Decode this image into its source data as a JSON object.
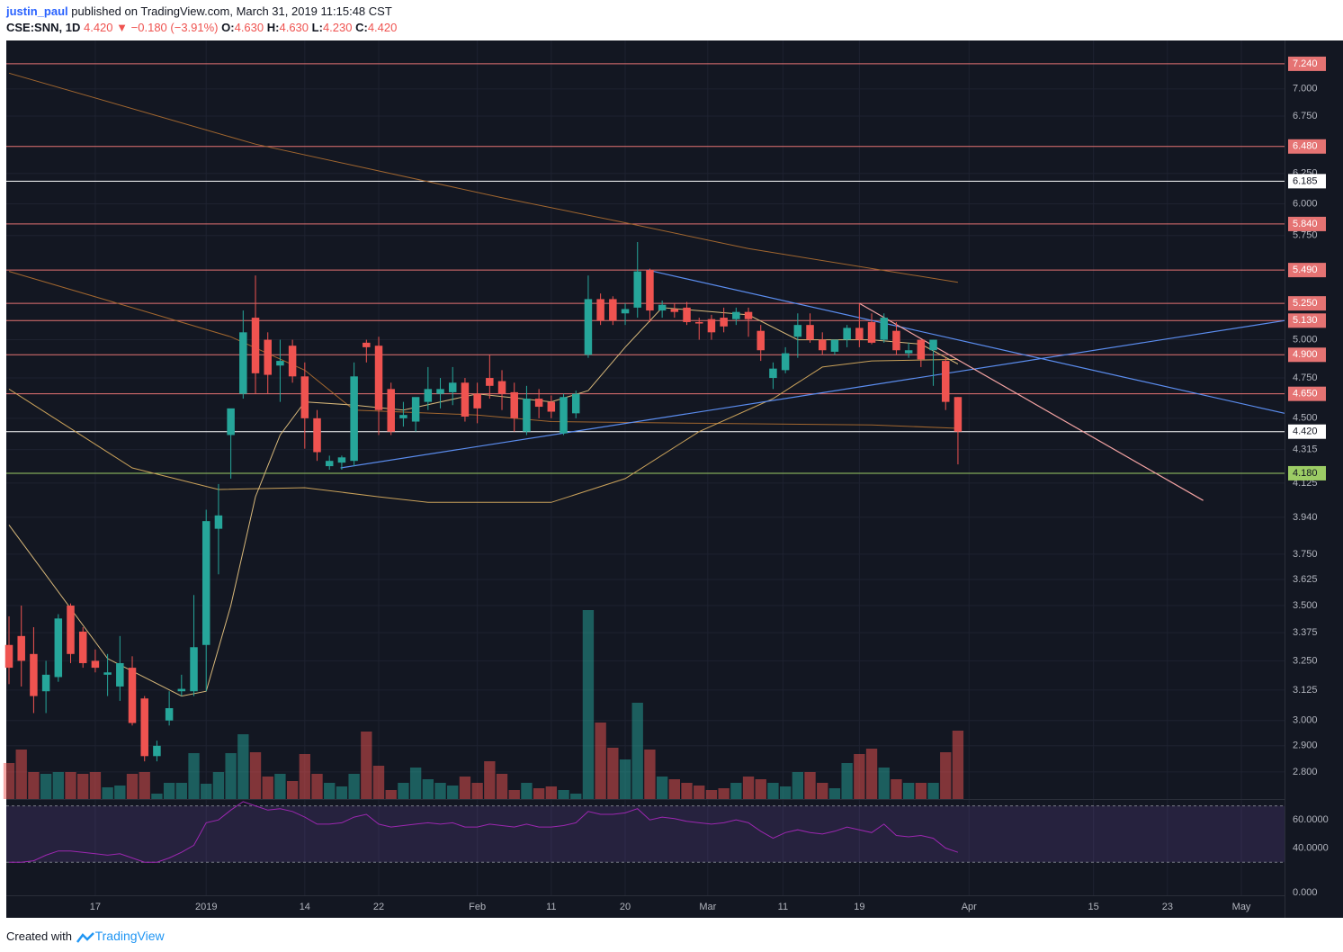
{
  "chart_data": {
    "type": "candlestick",
    "header": {
      "author": "justin_paul",
      "published": "published on TradingView.com, March 31, 2019 11:15:48 CST"
    },
    "quote": {
      "symbol": "CSE:SNN, 1D",
      "last": "4.420",
      "arrow": "▼",
      "change": "−0.180 (−3.91%)",
      "fields": [
        {
          "label": "O:",
          "value": "4.630"
        },
        {
          "label": "H:",
          "value": "4.630"
        },
        {
          "label": "L:",
          "value": "4.230"
        },
        {
          "label": "C:",
          "value": "4.420"
        }
      ]
    },
    "footer": {
      "text": "Created with",
      "brand": "TradingView"
    },
    "log_scale": true,
    "grid": true,
    "up_color": "#26a69a",
    "down_color": "#ef5350",
    "xlim": [
      -0.22,
      103.5
    ],
    "xticks": [
      {
        "value": 7,
        "label": "17"
      },
      {
        "value": 16,
        "label": "2019"
      },
      {
        "value": 24,
        "label": "14"
      },
      {
        "value": 30,
        "label": "22"
      },
      {
        "value": 38,
        "label": "Feb"
      },
      {
        "value": 44,
        "label": "11"
      },
      {
        "value": 50,
        "label": "20"
      },
      {
        "value": 56.7,
        "label": "Mar"
      },
      {
        "value": 62.8,
        "label": "11"
      },
      {
        "value": 69,
        "label": "19"
      },
      {
        "value": 77.9,
        "label": "Apr"
      },
      {
        "value": 88,
        "label": "15"
      },
      {
        "value": 94,
        "label": "23"
      },
      {
        "value": 100,
        "label": "May"
      }
    ],
    "ylim": [
      2.7,
      7.47
    ],
    "yticks": [
      {
        "value": 7,
        "label": "7.000"
      },
      {
        "value": 6.75,
        "label": "6.750"
      },
      {
        "value": 6.25,
        "label": "6.250"
      },
      {
        "value": 6,
        "label": "6.000"
      },
      {
        "value": 5.75,
        "label": "5.750"
      },
      {
        "value": 5,
        "label": "5.000"
      },
      {
        "value": 4.75,
        "label": "4.750"
      },
      {
        "value": 4.5,
        "label": "4.500"
      },
      {
        "value": 4.315,
        "label": "4.315"
      },
      {
        "value": 4.125,
        "label": "4.125"
      },
      {
        "value": 3.94,
        "label": "3.940"
      },
      {
        "value": 3.75,
        "label": "3.750"
      },
      {
        "value": 3.625,
        "label": "3.625"
      },
      {
        "value": 3.5,
        "label": "3.500"
      },
      {
        "value": 3.375,
        "label": "3.375"
      },
      {
        "value": 3.25,
        "label": "3.250"
      },
      {
        "value": 3.125,
        "label": "3.125"
      },
      {
        "value": 3,
        "label": "3.000"
      },
      {
        "value": 2.9,
        "label": "2.900"
      },
      {
        "value": 2.8,
        "label": "2.800"
      }
    ],
    "price_lines": [
      {
        "value": 7.24,
        "label": "7.240",
        "color": "#e57373",
        "text_color": "#ffffff"
      },
      {
        "value": 6.48,
        "label": "6.480",
        "color": "#e57373",
        "text_color": "#ffffff"
      },
      {
        "value": 6.185,
        "label": "6.185",
        "color": "#ffffff",
        "text_color": "#131722"
      },
      {
        "value": 5.84,
        "label": "5.840",
        "color": "#e57373",
        "text_color": "#ffffff"
      },
      {
        "value": 5.49,
        "label": "5.490",
        "color": "#e57373",
        "text_color": "#ffffff"
      },
      {
        "value": 5.25,
        "label": "5.250",
        "color": "#e57373",
        "text_color": "#ffffff"
      },
      {
        "value": 5.13,
        "label": "5.130",
        "color": "#e57373",
        "text_color": "#ffffff"
      },
      {
        "value": 4.9,
        "label": "4.900",
        "color": "#e57373",
        "text_color": "#ffffff"
      },
      {
        "value": 4.65,
        "label": "4.650",
        "color": "#e57373",
        "text_color": "#ffffff"
      },
      {
        "value": 4.42,
        "label": "4.420",
        "color": "#ffffff",
        "text_color": "#131722"
      },
      {
        "value": 4.18,
        "label": "4.180",
        "color": "#9ccc65",
        "text_color": "#131722"
      }
    ],
    "candles": {
      "open": [
        3.32,
        3.36,
        3.28,
        3.12,
        3.18,
        3.5,
        3.38,
        3.25,
        3.19,
        3.14,
        3.22,
        3.09,
        2.86,
        3.0,
        3.12,
        3.12,
        3.32,
        3.88,
        4.4,
        4.65,
        5.15,
        5.0,
        4.83,
        4.96,
        4.76,
        4.5,
        4.22,
        4.24,
        4.25,
        4.98,
        4.96,
        4.68,
        4.5,
        4.48,
        4.6,
        4.65,
        4.66,
        4.72,
        4.65,
        4.75,
        4.73,
        4.66,
        4.42,
        4.62,
        4.6,
        4.41,
        4.53,
        4.9,
        5.28,
        5.28,
        5.18,
        5.22,
        5.49,
        5.2,
        5.21,
        5.22,
        5.12,
        5.14,
        5.15,
        5.14,
        5.19,
        5.06,
        4.75,
        4.8,
        5.02,
        5.1,
        5.0,
        4.92,
        5.0,
        5.08,
        5.12,
        5.0,
        5.06,
        4.91,
        5.0,
        4.93,
        4.86,
        4.63
      ],
      "high": [
        3.45,
        3.5,
        3.4,
        3.25,
        3.46,
        3.51,
        3.4,
        3.3,
        3.28,
        3.36,
        3.27,
        3.1,
        2.92,
        3.12,
        3.19,
        3.55,
        3.98,
        4.12,
        4.42,
        5.2,
        5.45,
        5.05,
        5.0,
        5.0,
        4.85,
        4.55,
        4.28,
        4.28,
        4.85,
        5.0,
        5.02,
        4.72,
        4.6,
        4.58,
        4.82,
        4.75,
        4.82,
        4.75,
        4.72,
        4.9,
        4.8,
        4.72,
        4.7,
        4.68,
        4.64,
        4.65,
        4.67,
        5.45,
        5.32,
        5.3,
        5.25,
        5.7,
        5.5,
        5.27,
        5.25,
        5.26,
        5.15,
        5.17,
        5.22,
        5.22,
        5.22,
        5.1,
        4.85,
        4.95,
        5.18,
        5.18,
        5.05,
        5.0,
        5.1,
        5.25,
        5.18,
        5.18,
        5.12,
        4.98,
        5.0,
        5.0,
        4.88,
        4.63
      ],
      "low": [
        3.15,
        3.14,
        3.03,
        3.03,
        3.16,
        3.24,
        3.22,
        3.2,
        3.1,
        3.08,
        2.98,
        2.84,
        2.84,
        2.98,
        3.1,
        3.1,
        3.12,
        3.65,
        4.15,
        4.62,
        4.65,
        4.65,
        4.6,
        4.72,
        4.32,
        4.25,
        4.2,
        4.2,
        4.22,
        4.85,
        4.4,
        4.4,
        4.45,
        4.42,
        4.55,
        4.56,
        4.58,
        4.48,
        4.47,
        4.62,
        4.55,
        4.42,
        4.4,
        4.5,
        4.5,
        4.4,
        4.5,
        4.88,
        5.1,
        5.1,
        5.1,
        5.15,
        5.12,
        5.15,
        5.15,
        5.1,
        5.0,
        5.0,
        5.05,
        5.1,
        5.02,
        4.86,
        4.68,
        4.78,
        4.88,
        4.98,
        4.9,
        4.9,
        4.95,
        4.95,
        4.97,
        4.98,
        4.9,
        4.88,
        4.82,
        4.7,
        4.55,
        4.23
      ],
      "close": [
        3.22,
        3.25,
        3.1,
        3.19,
        3.44,
        3.28,
        3.24,
        3.22,
        3.2,
        3.24,
        2.99,
        2.86,
        2.9,
        3.05,
        3.13,
        3.31,
        3.92,
        3.95,
        4.56,
        5.05,
        4.78,
        4.77,
        4.86,
        4.76,
        4.5,
        4.3,
        4.25,
        4.27,
        4.76,
        4.95,
        4.55,
        4.42,
        4.52,
        4.63,
        4.68,
        4.68,
        4.72,
        4.51,
        4.56,
        4.7,
        4.65,
        4.5,
        4.62,
        4.57,
        4.54,
        4.63,
        4.65,
        5.28,
        5.13,
        5.13,
        5.21,
        5.48,
        5.2,
        5.24,
        5.19,
        5.12,
        5.11,
        5.05,
        5.09,
        5.19,
        5.14,
        4.93,
        4.81,
        4.91,
        5.1,
        5.0,
        4.93,
        5.0,
        5.08,
        5.0,
        4.98,
        5.15,
        4.93,
        4.93,
        4.87,
        5.0,
        4.6,
        4.42
      ]
    },
    "vlim": [
      0,
      300
    ],
    "volume": [
      40,
      55,
      30,
      28,
      30,
      30,
      28,
      30,
      13,
      15,
      28,
      30,
      6,
      18,
      18,
      51,
      17,
      30,
      51,
      72,
      52,
      25,
      28,
      20,
      50,
      28,
      18,
      14,
      28,
      75,
      37,
      10,
      18,
      35,
      22,
      18,
      15,
      25,
      18,
      42,
      28,
      10,
      18,
      12,
      14,
      10,
      6,
      210,
      85,
      57,
      44,
      107,
      55,
      25,
      22,
      18,
      15,
      10,
      12,
      18,
      25,
      22,
      18,
      14,
      30,
      30,
      18,
      12,
      40,
      50,
      56,
      35,
      22,
      18,
      18,
      18,
      52,
      76
    ],
    "moving_averages": [
      {
        "color": "#a1662f",
        "x": [
          0,
          20,
          40,
          50,
          60,
          77
        ],
        "values": [
          7.15,
          6.5,
          6.05,
          5.85,
          5.65,
          5.4
        ]
      },
      {
        "color": "#a1662f",
        "x": [
          0,
          10,
          18,
          24,
          28,
          38,
          44,
          56,
          70,
          77
        ],
        "values": [
          5.48,
          5.22,
          5.02,
          4.8,
          4.55,
          4.52,
          4.48,
          4.47,
          4.46,
          4.44
        ]
      },
      {
        "color": "#c9a15a",
        "x": [
          0,
          10,
          17,
          24,
          30,
          34,
          44,
          50,
          56,
          62,
          66,
          70,
          77
        ],
        "values": [
          4.68,
          4.21,
          4.09,
          4.1,
          4.05,
          4.02,
          4.02,
          4.15,
          4.42,
          4.62,
          4.82,
          4.86,
          4.87
        ]
      },
      {
        "color": "#d8b87a",
        "x": [
          0,
          8,
          14,
          16,
          18,
          20,
          22,
          24,
          28,
          32,
          38,
          44,
          47,
          50,
          53,
          60,
          64,
          70,
          74,
          77
        ],
        "values": [
          3.9,
          3.26,
          3.1,
          3.12,
          3.5,
          4.05,
          4.4,
          4.6,
          4.58,
          4.55,
          4.65,
          4.6,
          4.67,
          4.95,
          5.22,
          5.17,
          5.0,
          5.0,
          4.97,
          4.84
        ]
      }
    ],
    "trend_lines": [
      {
        "color": "#5b8def",
        "x": [
          51.8,
          103.5
        ],
        "values": [
          5.49,
          4.53
        ]
      },
      {
        "color": "#5b8def",
        "x": [
          26.9,
          103.5
        ],
        "values": [
          4.21,
          5.13
        ]
      },
      {
        "color": "#f4a3a3",
        "x": [
          69,
          96.9
        ],
        "values": [
          5.25,
          4.03
        ]
      }
    ],
    "rsi": {
      "color": "#9c27b0",
      "ylim": [
        6.5,
        74.2
      ],
      "bands": [
        30,
        70
      ],
      "yticks": [
        {
          "value": 60,
          "label": "60.0000"
        },
        {
          "value": 40,
          "label": "40.0000"
        },
        {
          "value": 0,
          "label": "0.000"
        }
      ],
      "values": [
        30,
        30,
        31,
        35,
        38,
        38,
        37,
        36,
        35,
        36,
        33,
        30,
        30,
        33,
        37,
        42,
        58,
        60,
        67,
        73,
        70,
        67,
        68,
        66,
        62,
        57,
        57,
        58,
        62,
        64,
        57,
        55,
        56,
        57,
        58,
        57,
        58,
        55,
        55,
        57,
        56,
        55,
        57,
        55,
        55,
        56,
        58,
        66,
        64,
        64,
        65,
        68,
        60,
        62,
        61,
        59,
        58,
        57,
        58,
        60,
        58,
        52,
        47,
        51,
        53,
        51,
        50,
        52,
        55,
        53,
        51,
        57,
        49,
        48,
        49,
        47,
        40,
        37
      ]
    }
  }
}
